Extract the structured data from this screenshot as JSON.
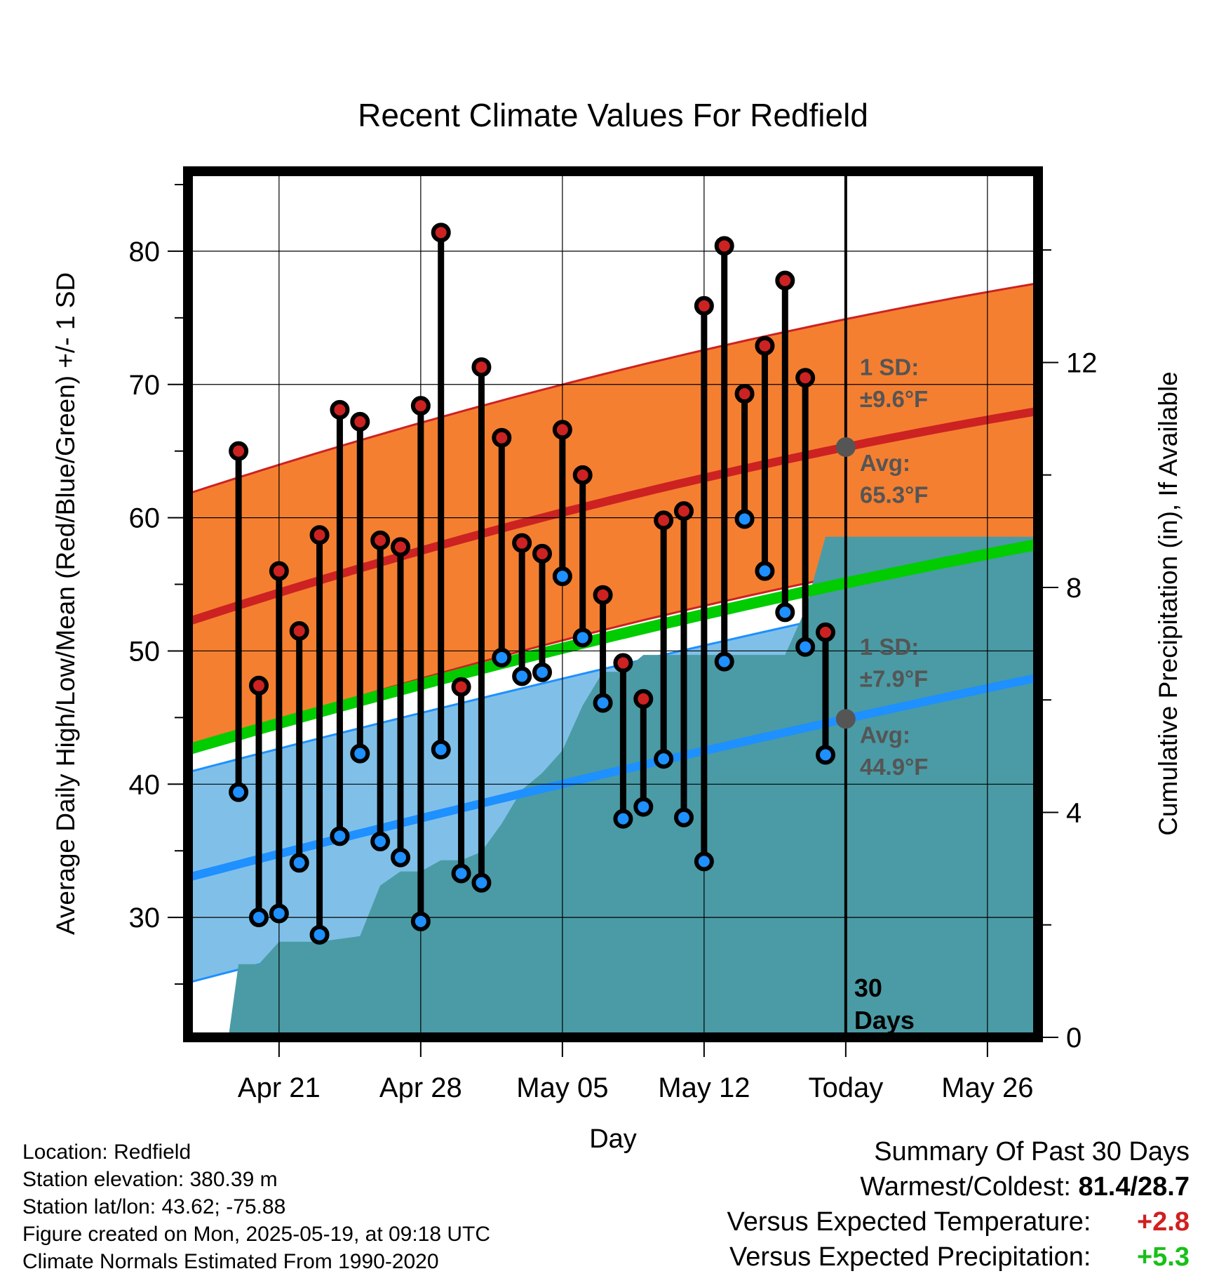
{
  "chart_data": {
    "type": "line",
    "title": "Recent Climate Values For Redfield",
    "xlabel": "Day",
    "ylabel": "Average Daily High/Low/Mean (Red/Blue/Green) +/- 1 SD",
    "ylabel_right": "Cumulative Precipitation (in), If Available",
    "x_ticks": [
      "Apr 21",
      "Apr 28",
      "May 05",
      "May 12",
      "Today",
      "May 26"
    ],
    "x_range_days": [
      -32.5,
      9.5
    ],
    "ylim": [
      21,
      86
    ],
    "y_ticks": [
      30,
      40,
      50,
      60,
      70,
      80
    ],
    "y2lim": [
      0,
      15.4
    ],
    "y2_ticks": [
      0,
      4,
      8,
      12
    ],
    "grid": true,
    "today_label": "30\nDays",
    "normals": {
      "high_avg": {
        "start": 52.2,
        "today": 65.3,
        "end": 68.0
      },
      "high_sd": 9.6,
      "low_avg": {
        "start": 33.0,
        "today": 44.9,
        "end": 48.0
      },
      "low_sd": 7.9,
      "mean_avg": {
        "start": 42.6,
        "today": 55.1,
        "end": 58.0
      }
    },
    "annotations": {
      "high_sd_label": "1 SD:",
      "high_sd_value": "±9.6°F",
      "high_avg_label": "Avg:",
      "high_avg_value": "65.3°F",
      "low_sd_label": "1 SD:",
      "low_sd_value": "±7.9°F",
      "low_avg_label": "Avg:",
      "low_avg_value": "44.9°F"
    },
    "daily": [
      {
        "day": -30,
        "high": 65.0,
        "low": 39.4
      },
      {
        "day": -29,
        "high": 47.4,
        "low": 30.0
      },
      {
        "day": -28,
        "high": 56.0,
        "low": 30.3
      },
      {
        "day": -27,
        "high": 51.5,
        "low": 34.1
      },
      {
        "day": -26,
        "high": 58.7,
        "low": 28.7
      },
      {
        "day": -25,
        "high": 68.1,
        "low": 36.1
      },
      {
        "day": -24,
        "high": 67.2,
        "low": 42.3
      },
      {
        "day": -23,
        "high": 58.3,
        "low": 35.7
      },
      {
        "day": -22,
        "high": 57.8,
        "low": 34.5
      },
      {
        "day": -21,
        "high": 68.4,
        "low": 29.7
      },
      {
        "day": -20,
        "high": 81.4,
        "low": 42.6
      },
      {
        "day": -19,
        "high": 47.3,
        "low": 33.3
      },
      {
        "day": -18,
        "high": 71.3,
        "low": 32.6
      },
      {
        "day": -17,
        "high": 66.0,
        "low": 49.5
      },
      {
        "day": -16,
        "high": 58.1,
        "low": 48.1
      },
      {
        "day": -15,
        "high": 57.3,
        "low": 48.4
      },
      {
        "day": -14,
        "high": 66.6,
        "low": 55.6
      },
      {
        "day": -13,
        "high": 63.2,
        "low": 51.0
      },
      {
        "day": -12,
        "high": 54.2,
        "low": 46.1
      },
      {
        "day": -11,
        "high": 49.1,
        "low": 37.4
      },
      {
        "day": -10,
        "high": 46.4,
        "low": 38.3
      },
      {
        "day": -9,
        "high": 59.8,
        "low": 41.9
      },
      {
        "day": -8,
        "high": 60.5,
        "low": 37.5
      },
      {
        "day": -7,
        "high": 75.9,
        "low": 34.2
      },
      {
        "day": -6,
        "high": 80.4,
        "low": 49.2
      },
      {
        "day": -5,
        "high": 69.3,
        "low": 59.9
      },
      {
        "day": -4,
        "high": 72.9,
        "low": 56.0
      },
      {
        "day": -3,
        "high": 77.8,
        "low": 52.9
      },
      {
        "day": -2,
        "high": 70.5,
        "low": 50.3
      },
      {
        "day": -1,
        "high": 51.4,
        "low": 42.2
      }
    ],
    "precip_cumulative": [
      [
        -30.5,
        0.0
      ],
      [
        -30.0,
        1.3
      ],
      [
        -29.0,
        1.3
      ],
      [
        -28.0,
        1.7
      ],
      [
        -26.0,
        1.7
      ],
      [
        -25.0,
        1.75
      ],
      [
        -24.0,
        1.8
      ],
      [
        -23.0,
        2.7
      ],
      [
        -22.0,
        2.95
      ],
      [
        -21.0,
        2.95
      ],
      [
        -20.0,
        3.15
      ],
      [
        -19.0,
        3.15
      ],
      [
        -18.0,
        3.3
      ],
      [
        -17.0,
        3.8
      ],
      [
        -16.0,
        4.4
      ],
      [
        -15.0,
        4.7
      ],
      [
        -14.0,
        5.1
      ],
      [
        -13.0,
        5.9
      ],
      [
        -12.0,
        6.5
      ],
      [
        -11.0,
        6.5
      ],
      [
        -10.0,
        6.8
      ],
      [
        -4.0,
        6.8
      ],
      [
        -3.0,
        6.8
      ],
      [
        -2.0,
        7.6
      ],
      [
        -1.0,
        8.9
      ],
      [
        0.0,
        8.9
      ],
      [
        9.5,
        8.9
      ]
    ],
    "colors": {
      "high_band": "#f57f30",
      "high_avg": "#cc2222",
      "low_band": "#80c0e8",
      "low_avg": "#1e90ff",
      "mean": "#00cc00",
      "precip": "#4a9ba5",
      "high_marker": "#cc2222",
      "low_marker": "#1e90ff",
      "annotation": "#555555"
    }
  },
  "footer": {
    "location": "Location: Redfield",
    "elevation": "Station elevation: 380.39 m",
    "latlon": "Station lat/lon: 43.62; -75.88",
    "created": "Figure created on Mon, 2025-05-19, at 09:18 UTC",
    "normals": "Climate Normals Estimated From 1990-2020"
  },
  "summary": {
    "title": "Summary Of Past 30 Days",
    "warmest_coldest_label": "Warmest/Coldest:",
    "warmest_coldest_value": "81.4/28.7",
    "temp_label": "Versus Expected Temperature:",
    "temp_value": "+2.8",
    "precip_label": "Versus Expected Precipitation:",
    "precip_value": "+5.3"
  }
}
